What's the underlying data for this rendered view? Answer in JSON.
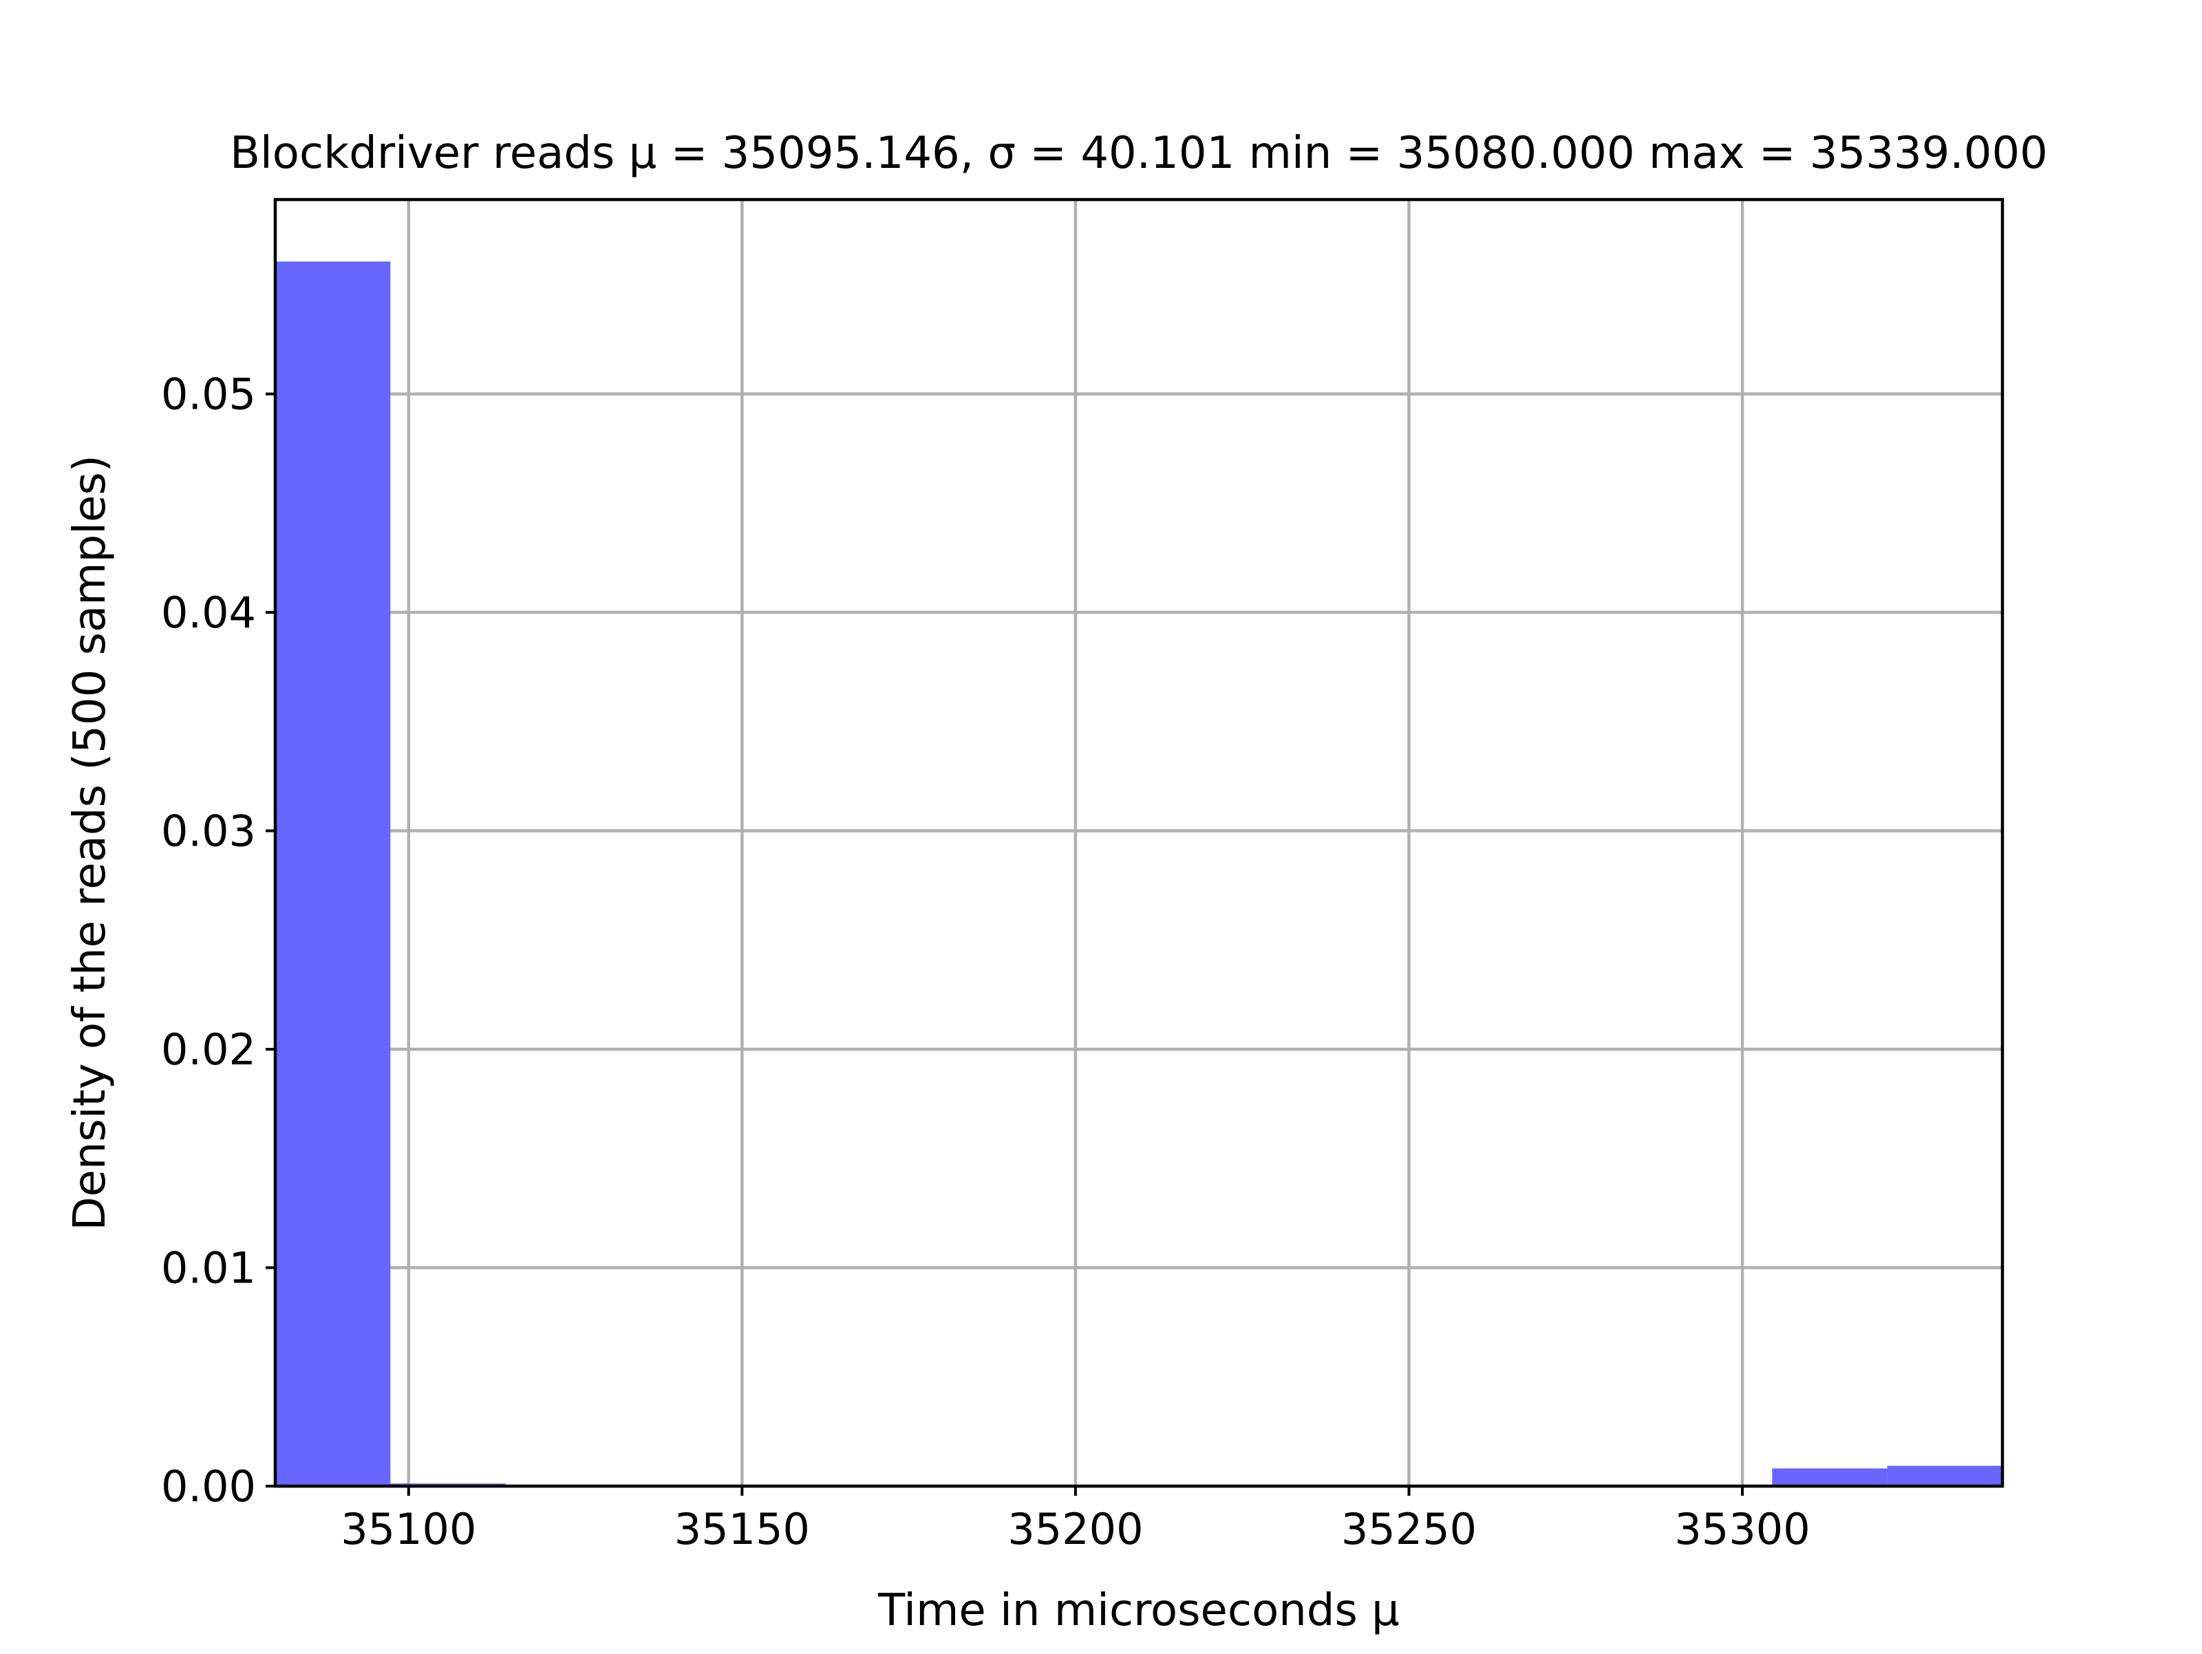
{
  "chart_data": {
    "type": "bar",
    "title": "Blockdriver reads μ = 35095.146,  σ = 40.101 min = 35080.000 max = 35339.000",
    "xlabel": "Time in microseconds μ",
    "ylabel": "Density of the reads (500 samples)",
    "xlim": [
      35080,
      35339
    ],
    "ylim": [
      0,
      0.0589
    ],
    "xticks": [
      35100,
      35150,
      35200,
      35250,
      35300
    ],
    "xtick_labels": [
      "35100",
      "35150",
      "35200",
      "35250",
      "35300"
    ],
    "yticks": [
      0.0,
      0.01,
      0.02,
      0.03,
      0.04,
      0.05
    ],
    "ytick_labels": [
      "0.00",
      "0.01",
      "0.02",
      "0.03",
      "0.04",
      "0.05"
    ],
    "grid": true,
    "bin_edges": [
      35080.0,
      35097.27,
      35114.53,
      35131.8,
      35149.07,
      35166.33,
      35183.6,
      35200.87,
      35218.13,
      35235.4,
      35252.67,
      35269.93,
      35287.2,
      35304.47,
      35321.73,
      35339.0
    ],
    "values": [
      0.05606,
      0.00012,
      0.0,
      0.0,
      0.0,
      0.0,
      0.0,
      0.0,
      0.0,
      0.0,
      0.0,
      0.0,
      0.0,
      0.00081,
      0.00093
    ],
    "bar_color": "#6666ff"
  }
}
